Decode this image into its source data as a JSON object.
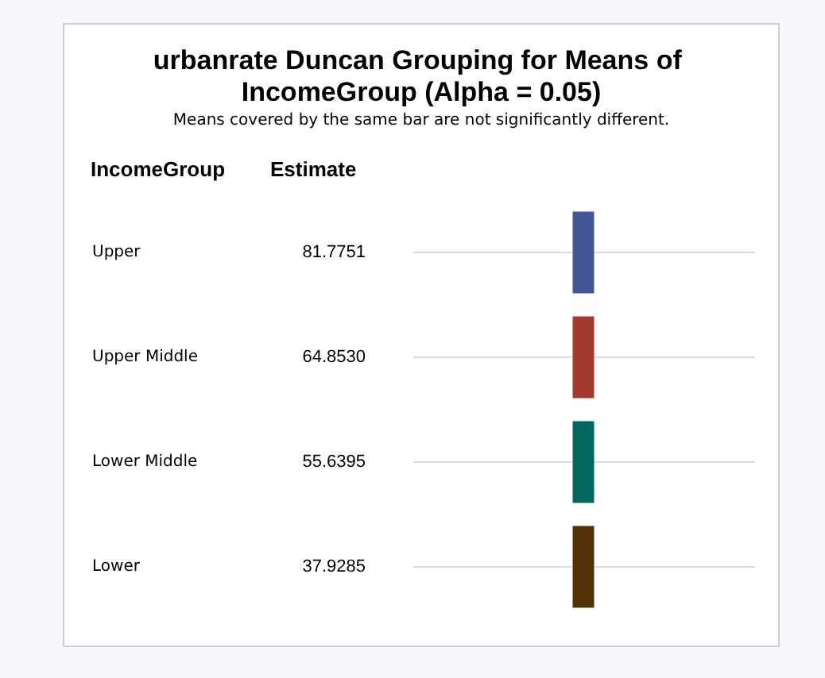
{
  "chart_data": {
    "type": "other",
    "title": "urbanrate Duncan Grouping for Means of IncomeGroup (Alpha = 0.05)",
    "subtitle": "Means covered by the same bar are not significantly different.",
    "ylabel": "IncomeGroup",
    "xlabel": "Estimate",
    "categories": [
      "Upper",
      "Upper Middle",
      "Lower Middle",
      "Lower"
    ],
    "values": [
      81.7751,
      64.853,
      55.6395,
      37.9285
    ],
    "value_labels": [
      "81.7751",
      "64.8530",
      "55.6395",
      "37.9285"
    ],
    "colors": [
      "#445694",
      "#a23a2e",
      "#01665e",
      "#543005"
    ]
  }
}
